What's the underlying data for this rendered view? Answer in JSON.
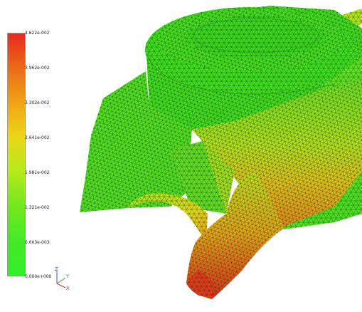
{
  "scalar_bar": {
    "labels": [
      "4.622e-002",
      "3.962e-002",
      "3.302e-002",
      "2.641e-002",
      "1.981e-002",
      "1.321e-002",
      "6.603e-003",
      "0.000e+000"
    ],
    "colors": [
      "#e8281e",
      "#ec6a18",
      "#f1a515",
      "#e9d816",
      "#b5ea1c",
      "#74e81f",
      "#43ea26",
      "#33ee2a"
    ]
  },
  "axes": {
    "z": "Z",
    "y": "Y",
    "x": "X",
    "colors": {
      "x": "#e03030",
      "y": "#30a030",
      "z": "#3050d0"
    }
  }
}
